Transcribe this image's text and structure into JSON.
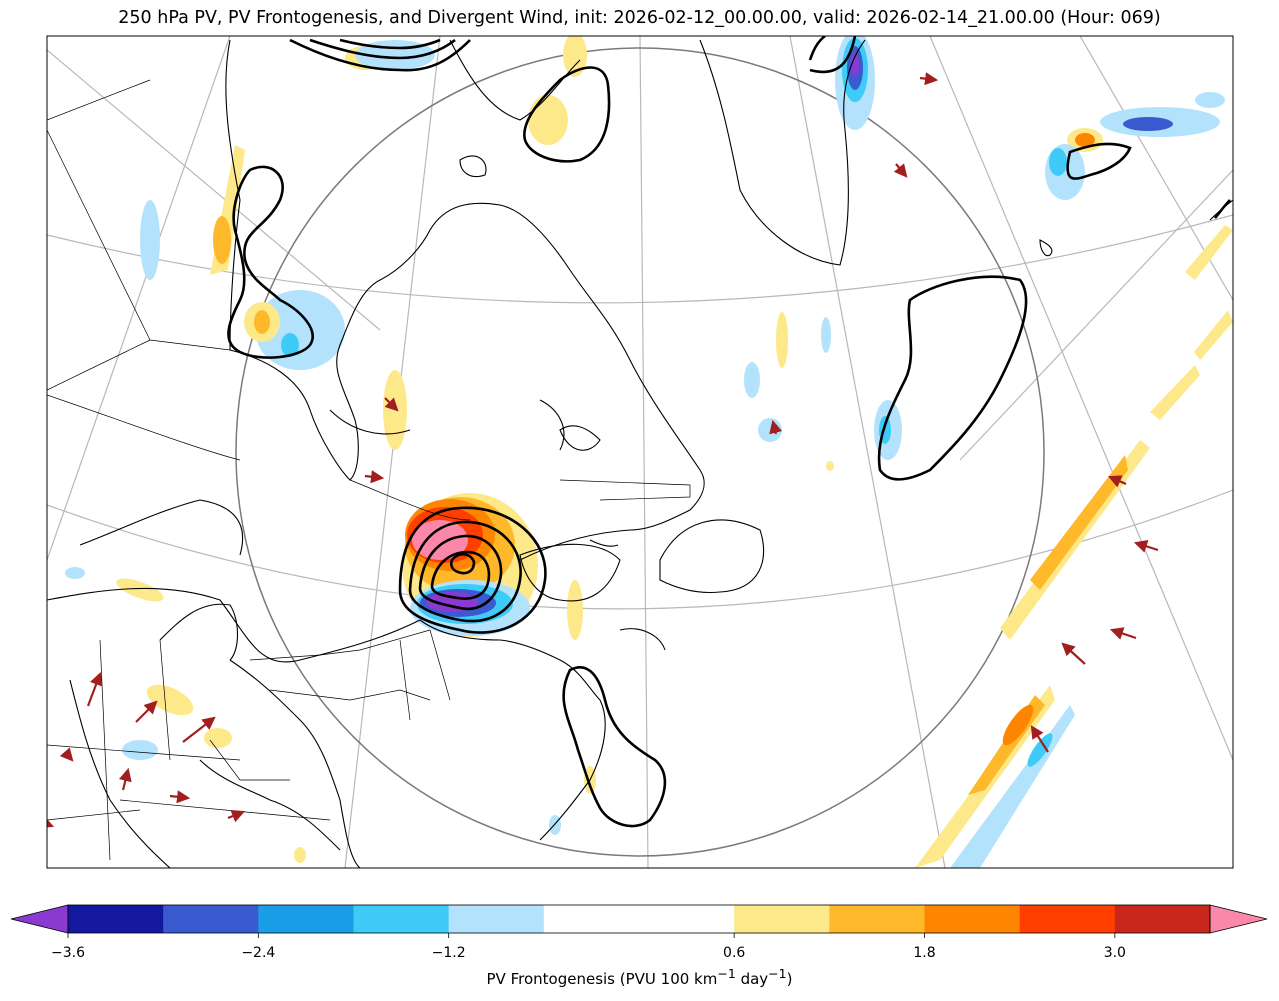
{
  "chart_data": {
    "type": "map",
    "title": "250 hPa PV, PV Frontogenesis, and Divergent Wind, init: 2026-02-12_00.00.00, valid: 2026-02-14_21.00.00 (Hour: 069)",
    "fields": {
      "shaded": "PV Frontogenesis",
      "contours": "250 hPa PV",
      "vectors": "Divergent Wind"
    },
    "region": "Northeastern North America, Labrador Sea, southern Greenland and western North Atlantic",
    "colorbar": {
      "label": "PV Frontogenesis (PVU 100 km",
      "label_sup1": "−1",
      "label_mid": " day",
      "label_sup2": "−1",
      "label_end": ")",
      "extend": "both",
      "levels": [
        -3.6,
        -3.0,
        -2.4,
        -1.8,
        -1.2,
        -0.6,
        0.6,
        1.2,
        1.8,
        2.4,
        3.0,
        3.6
      ],
      "tick_values": [
        -3.6,
        -2.4,
        -1.2,
        0.6,
        1.8,
        3.0
      ],
      "tick_labels": [
        "−3.6",
        "−2.4",
        "−1.2",
        "0.6",
        "1.8",
        "3.0"
      ],
      "colors": [
        "#1418a0",
        "#3a5bd0",
        "#1a9ee8",
        "#3fcbf7",
        "#b3e3fc",
        "#ffffff",
        "#fee98a",
        "#feb82a",
        "#fe8500",
        "#fe3f00",
        "#c9271b"
      ],
      "under_color": "#8a3ad0",
      "over_color": "#fb88a8"
    }
  }
}
